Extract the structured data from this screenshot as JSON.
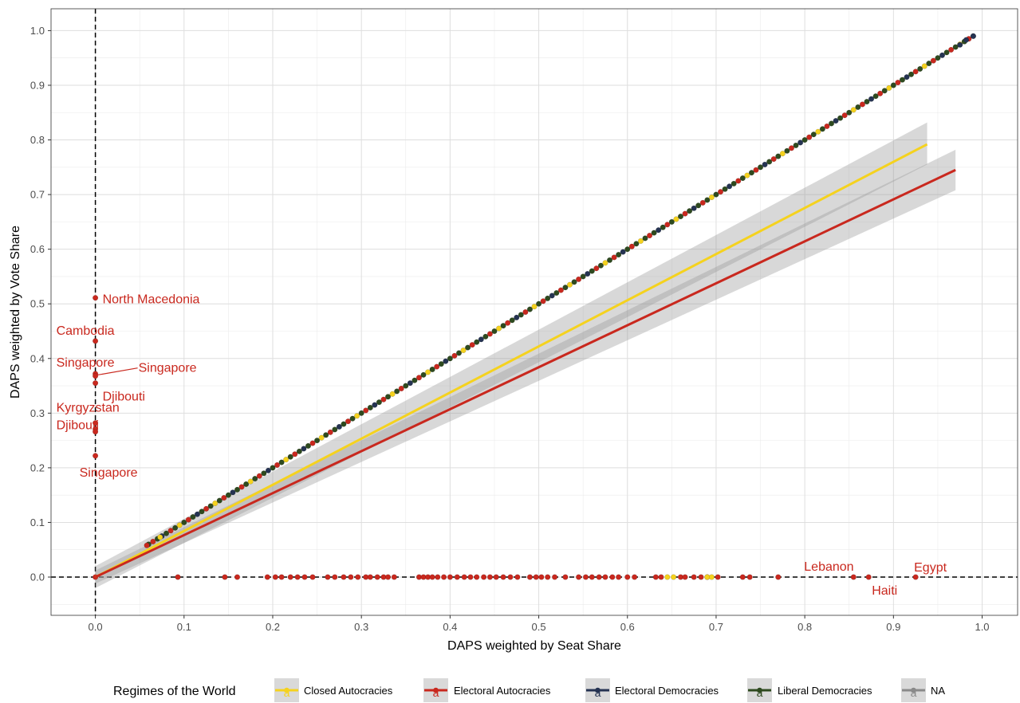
{
  "chart_data": {
    "type": "scatter",
    "xlabel": "DAPS weighted by Seat Share",
    "ylabel": "DAPS weighted by Vote Share",
    "xlim": [
      -0.05,
      1.04
    ],
    "ylim": [
      -0.07,
      1.04
    ],
    "x_ticks": [
      0.0,
      0.1,
      0.2,
      0.3,
      0.4,
      0.5,
      0.6,
      0.7,
      0.8,
      0.9,
      1.0
    ],
    "x_tick_labels": [
      "0.0",
      "0.1",
      "0.2",
      "0.3",
      "0.4",
      "0.5",
      "0.6",
      "0.7",
      "0.8",
      "0.9",
      "1.0"
    ],
    "y_ticks": [
      0.0,
      0.1,
      0.2,
      0.3,
      0.4,
      0.5,
      0.6,
      0.7,
      0.8,
      0.9,
      1.0
    ],
    "y_tick_labels": [
      "0.0",
      "0.1",
      "0.2",
      "0.3",
      "0.4",
      "0.5",
      "0.6",
      "0.7",
      "0.8",
      "0.9",
      "1.0"
    ],
    "grid": true,
    "reference_lines": [
      {
        "orientation": "vertical",
        "value": 0,
        "style": "dashed"
      },
      {
        "orientation": "horizontal",
        "value": 0,
        "style": "dashed"
      }
    ],
    "legend": {
      "title": "Regimes of the World",
      "position": "bottom",
      "entries": [
        {
          "label": "Closed Autocracies",
          "color": "#f5d21e"
        },
        {
          "label": "Electoral Autocracies",
          "color": "#c9281e"
        },
        {
          "label": "Electoral Democracies",
          "color": "#253352"
        },
        {
          "label": "Liberal Democracies",
          "color": "#2e4a1f"
        },
        {
          "label": "NA",
          "color": "#8a8a8a"
        }
      ]
    },
    "fit_lines": [
      {
        "series": "Closed Autocracies",
        "color": "#f5d21e",
        "x": [
          0.0,
          0.938
        ],
        "y": [
          0.0,
          0.792
        ],
        "ci_start": [
          -0.02,
          0.02
        ],
        "ci_end": [
          0.755,
          0.832
        ]
      },
      {
        "series": "Electoral Autocracies",
        "color": "#c9281e",
        "x": [
          0.0,
          0.97
        ],
        "y": [
          0.0,
          0.745
        ],
        "ci_start": [
          -0.012,
          0.012
        ],
        "ci_end": [
          0.708,
          0.782
        ]
      }
    ],
    "diagonal_points": {
      "x_start": 0.06,
      "x_end": 0.99,
      "step": 0.005,
      "color_sequence": [
        "Liberal Democracies",
        "Electoral Autocracies",
        "Liberal Democracies",
        "Electoral Democracies",
        "Liberal Democracies",
        "Electoral Autocracies",
        "Liberal Democracies",
        "Closed Autocracies"
      ],
      "end_points": [
        {
          "x": 0.99,
          "y": 0.99,
          "series": "Electoral Democracies"
        },
        {
          "x": 0.982,
          "y": 0.983,
          "series": "Electoral Democracies"
        },
        {
          "x": 0.975,
          "y": 0.974,
          "series": "Electoral Democracies"
        },
        {
          "x": 0.058,
          "y": 0.058,
          "series": "Electoral Autocracies"
        },
        {
          "x": 0.073,
          "y": 0.073,
          "series": "Closed Autocracies"
        }
      ]
    },
    "vertical_points": {
      "x": 0,
      "series": "Electoral Autocracies",
      "y": [
        0.511,
        0.432,
        0.372,
        0.368,
        0.355,
        0.282,
        0.271,
        0.266,
        0.222,
        0.0
      ]
    },
    "zero_vote_points": {
      "y": 0,
      "electoral_autocracies_x": [
        0.093,
        0.146,
        0.16,
        0.194,
        0.203,
        0.21,
        0.22,
        0.228,
        0.236,
        0.245,
        0.262,
        0.27,
        0.28,
        0.288,
        0.296,
        0.305,
        0.31,
        0.318,
        0.325,
        0.33,
        0.337,
        0.365,
        0.37,
        0.375,
        0.38,
        0.386,
        0.393,
        0.4,
        0.408,
        0.416,
        0.423,
        0.43,
        0.438,
        0.445,
        0.452,
        0.46,
        0.468,
        0.476,
        0.49,
        0.497,
        0.503,
        0.51,
        0.518,
        0.53,
        0.545,
        0.553,
        0.56,
        0.568,
        0.575,
        0.583,
        0.59,
        0.6,
        0.608,
        0.632,
        0.638,
        0.66,
        0.665,
        0.675,
        0.683,
        0.69,
        0.702,
        0.73,
        0.738,
        0.77,
        0.855,
        0.872,
        0.925
      ],
      "closed_autocracies_x": [
        0.645,
        0.652,
        0.69,
        0.695
      ]
    },
    "annotations": [
      {
        "text": "North Macedonia",
        "x": 0.0,
        "y": 0.511
      },
      {
        "text": "Cambodia",
        "x": 0.0,
        "y": 0.432
      },
      {
        "text": "Singapore",
        "x": 0.0,
        "y": 0.372
      },
      {
        "text": "Singapore",
        "x": 0.0,
        "y": 0.368
      },
      {
        "text": "Djibouti",
        "x": 0.0,
        "y": 0.355
      },
      {
        "text": "Kyrgyzstan",
        "x": 0.0,
        "y": 0.282
      },
      {
        "text": "Djibouti",
        "x": 0.0,
        "y": 0.266
      },
      {
        "text": "Singapore",
        "x": 0.0,
        "y": 0.222
      },
      {
        "text": "Lebanon",
        "x": 0.855,
        "y": 0.0
      },
      {
        "text": "Haiti",
        "x": 0.872,
        "y": 0.0
      },
      {
        "text": "Egypt",
        "x": 0.925,
        "y": 0.0
      }
    ]
  }
}
